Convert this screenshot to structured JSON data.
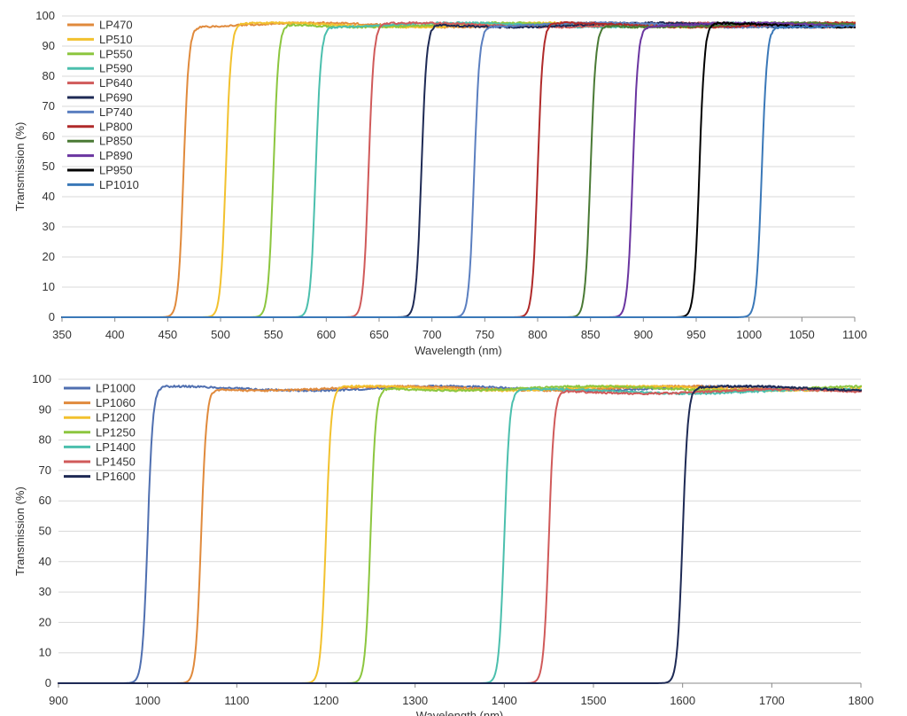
{
  "chart_data": [
    {
      "type": "line",
      "title": "",
      "xlabel": "Wavelength (nm)",
      "ylabel": "Transmission (%)",
      "xlim": [
        350,
        1100
      ],
      "ylim": [
        0,
        100
      ],
      "xticks": [
        350,
        400,
        450,
        500,
        550,
        600,
        650,
        700,
        750,
        800,
        850,
        900,
        950,
        1000,
        1050,
        1100
      ],
      "yticks": [
        0,
        10,
        20,
        30,
        40,
        50,
        60,
        70,
        80,
        90,
        100
      ],
      "grid": true,
      "legend_position": "top-left",
      "series": [
        {
          "name": "LP470",
          "color": "#e08a3c",
          "cut_on_nm": 465,
          "plateau_pct": 97
        },
        {
          "name": "LP510",
          "color": "#f2c12e",
          "cut_on_nm": 505,
          "plateau_pct": 97
        },
        {
          "name": "LP550",
          "color": "#8cc63f",
          "cut_on_nm": 550,
          "plateau_pct": 97
        },
        {
          "name": "LP590",
          "color": "#4bbfad",
          "cut_on_nm": 590,
          "plateau_pct": 97
        },
        {
          "name": "LP640",
          "color": "#d05a5a",
          "cut_on_nm": 640,
          "plateau_pct": 97
        },
        {
          "name": "LP690",
          "color": "#1e2a55",
          "cut_on_nm": 690,
          "plateau_pct": 97
        },
        {
          "name": "LP740",
          "color": "#5b7fc0",
          "cut_on_nm": 740,
          "plateau_pct": 97
        },
        {
          "name": "LP800",
          "color": "#b02a2a",
          "cut_on_nm": 800,
          "plateau_pct": 97
        },
        {
          "name": "LP850",
          "color": "#4a7a35",
          "cut_on_nm": 850,
          "plateau_pct": 97
        },
        {
          "name": "LP890",
          "color": "#6a35a0",
          "cut_on_nm": 890,
          "plateau_pct": 97
        },
        {
          "name": "LP950",
          "color": "#000000",
          "cut_on_nm": 953,
          "plateau_pct": 97
        },
        {
          "name": "LP1010",
          "color": "#3a78b8",
          "cut_on_nm": 1012,
          "plateau_pct": 97
        }
      ]
    },
    {
      "type": "line",
      "title": "",
      "xlabel": "Wavelength (nm)",
      "ylabel": "Transmission (%)",
      "xlim": [
        900,
        1800
      ],
      "ylim": [
        0,
        100
      ],
      "xticks": [
        900,
        1000,
        1100,
        1200,
        1300,
        1400,
        1500,
        1600,
        1700,
        1800
      ],
      "yticks": [
        0,
        10,
        20,
        30,
        40,
        50,
        60,
        70,
        80,
        90,
        100
      ],
      "grid": true,
      "legend_position": "top-left",
      "series": [
        {
          "name": "LP1000",
          "color": "#4f6fb0",
          "cut_on_nm": 1000,
          "plateau_pct": 97
        },
        {
          "name": "LP1060",
          "color": "#e08a3c",
          "cut_on_nm": 1060,
          "plateau_pct": 97
        },
        {
          "name": "LP1200",
          "color": "#f2c12e",
          "cut_on_nm": 1200,
          "plateau_pct": 97
        },
        {
          "name": "LP1250",
          "color": "#8cc63f",
          "cut_on_nm": 1250,
          "plateau_pct": 97
        },
        {
          "name": "LP1400",
          "color": "#4bbfad",
          "cut_on_nm": 1400,
          "plateau_pct": 96
        },
        {
          "name": "LP1450",
          "color": "#d05a5a",
          "cut_on_nm": 1450,
          "plateau_pct": 96
        },
        {
          "name": "LP1600",
          "color": "#1e2a55",
          "cut_on_nm": 1600,
          "plateau_pct": 97
        }
      ]
    }
  ]
}
